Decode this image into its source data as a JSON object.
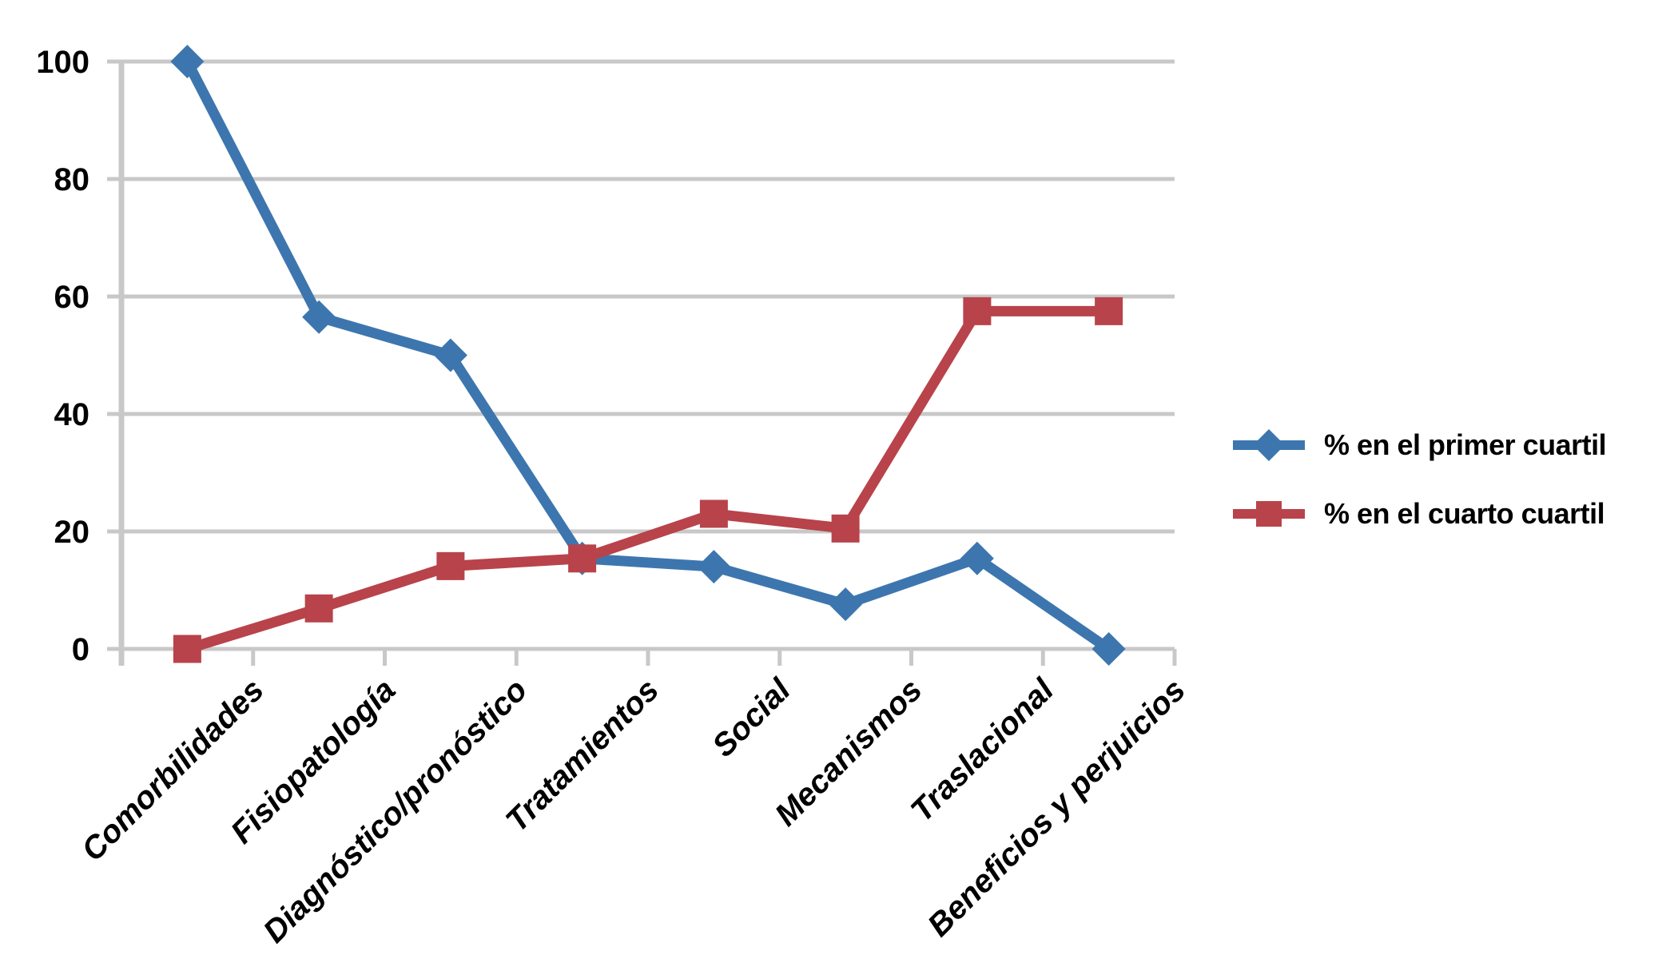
{
  "chart_data": {
    "type": "line",
    "categories": [
      "Comorbilidades",
      "Fisiopatología",
      "Diagnóstico/pronóstico",
      "Tratamientos",
      "Social",
      "Mecanismos",
      "Traslacional",
      "Beneficios y perjuicios"
    ],
    "series": [
      {
        "name": "% en el primer cuartil",
        "color": "#3D76AE",
        "marker": "diamond",
        "values": [
          100,
          56.5,
          50,
          15.4,
          14,
          7.6,
          15.4,
          0
        ]
      },
      {
        "name": "% en el cuarto cuartil",
        "color": "#B8434B",
        "marker": "square",
        "values": [
          0,
          6.9,
          14.1,
          15.4,
          23,
          20.5,
          57.5,
          57.5
        ]
      }
    ],
    "ylim": [
      0,
      100
    ],
    "yticks": [
      0,
      20,
      40,
      60,
      80,
      100
    ],
    "grid": "horizontal",
    "legend_position": "right"
  },
  "colors": {
    "grid": "#C8C8C8",
    "axis": "#C8C8C8",
    "text": "#000000",
    "background": "#FFFFFF"
  }
}
